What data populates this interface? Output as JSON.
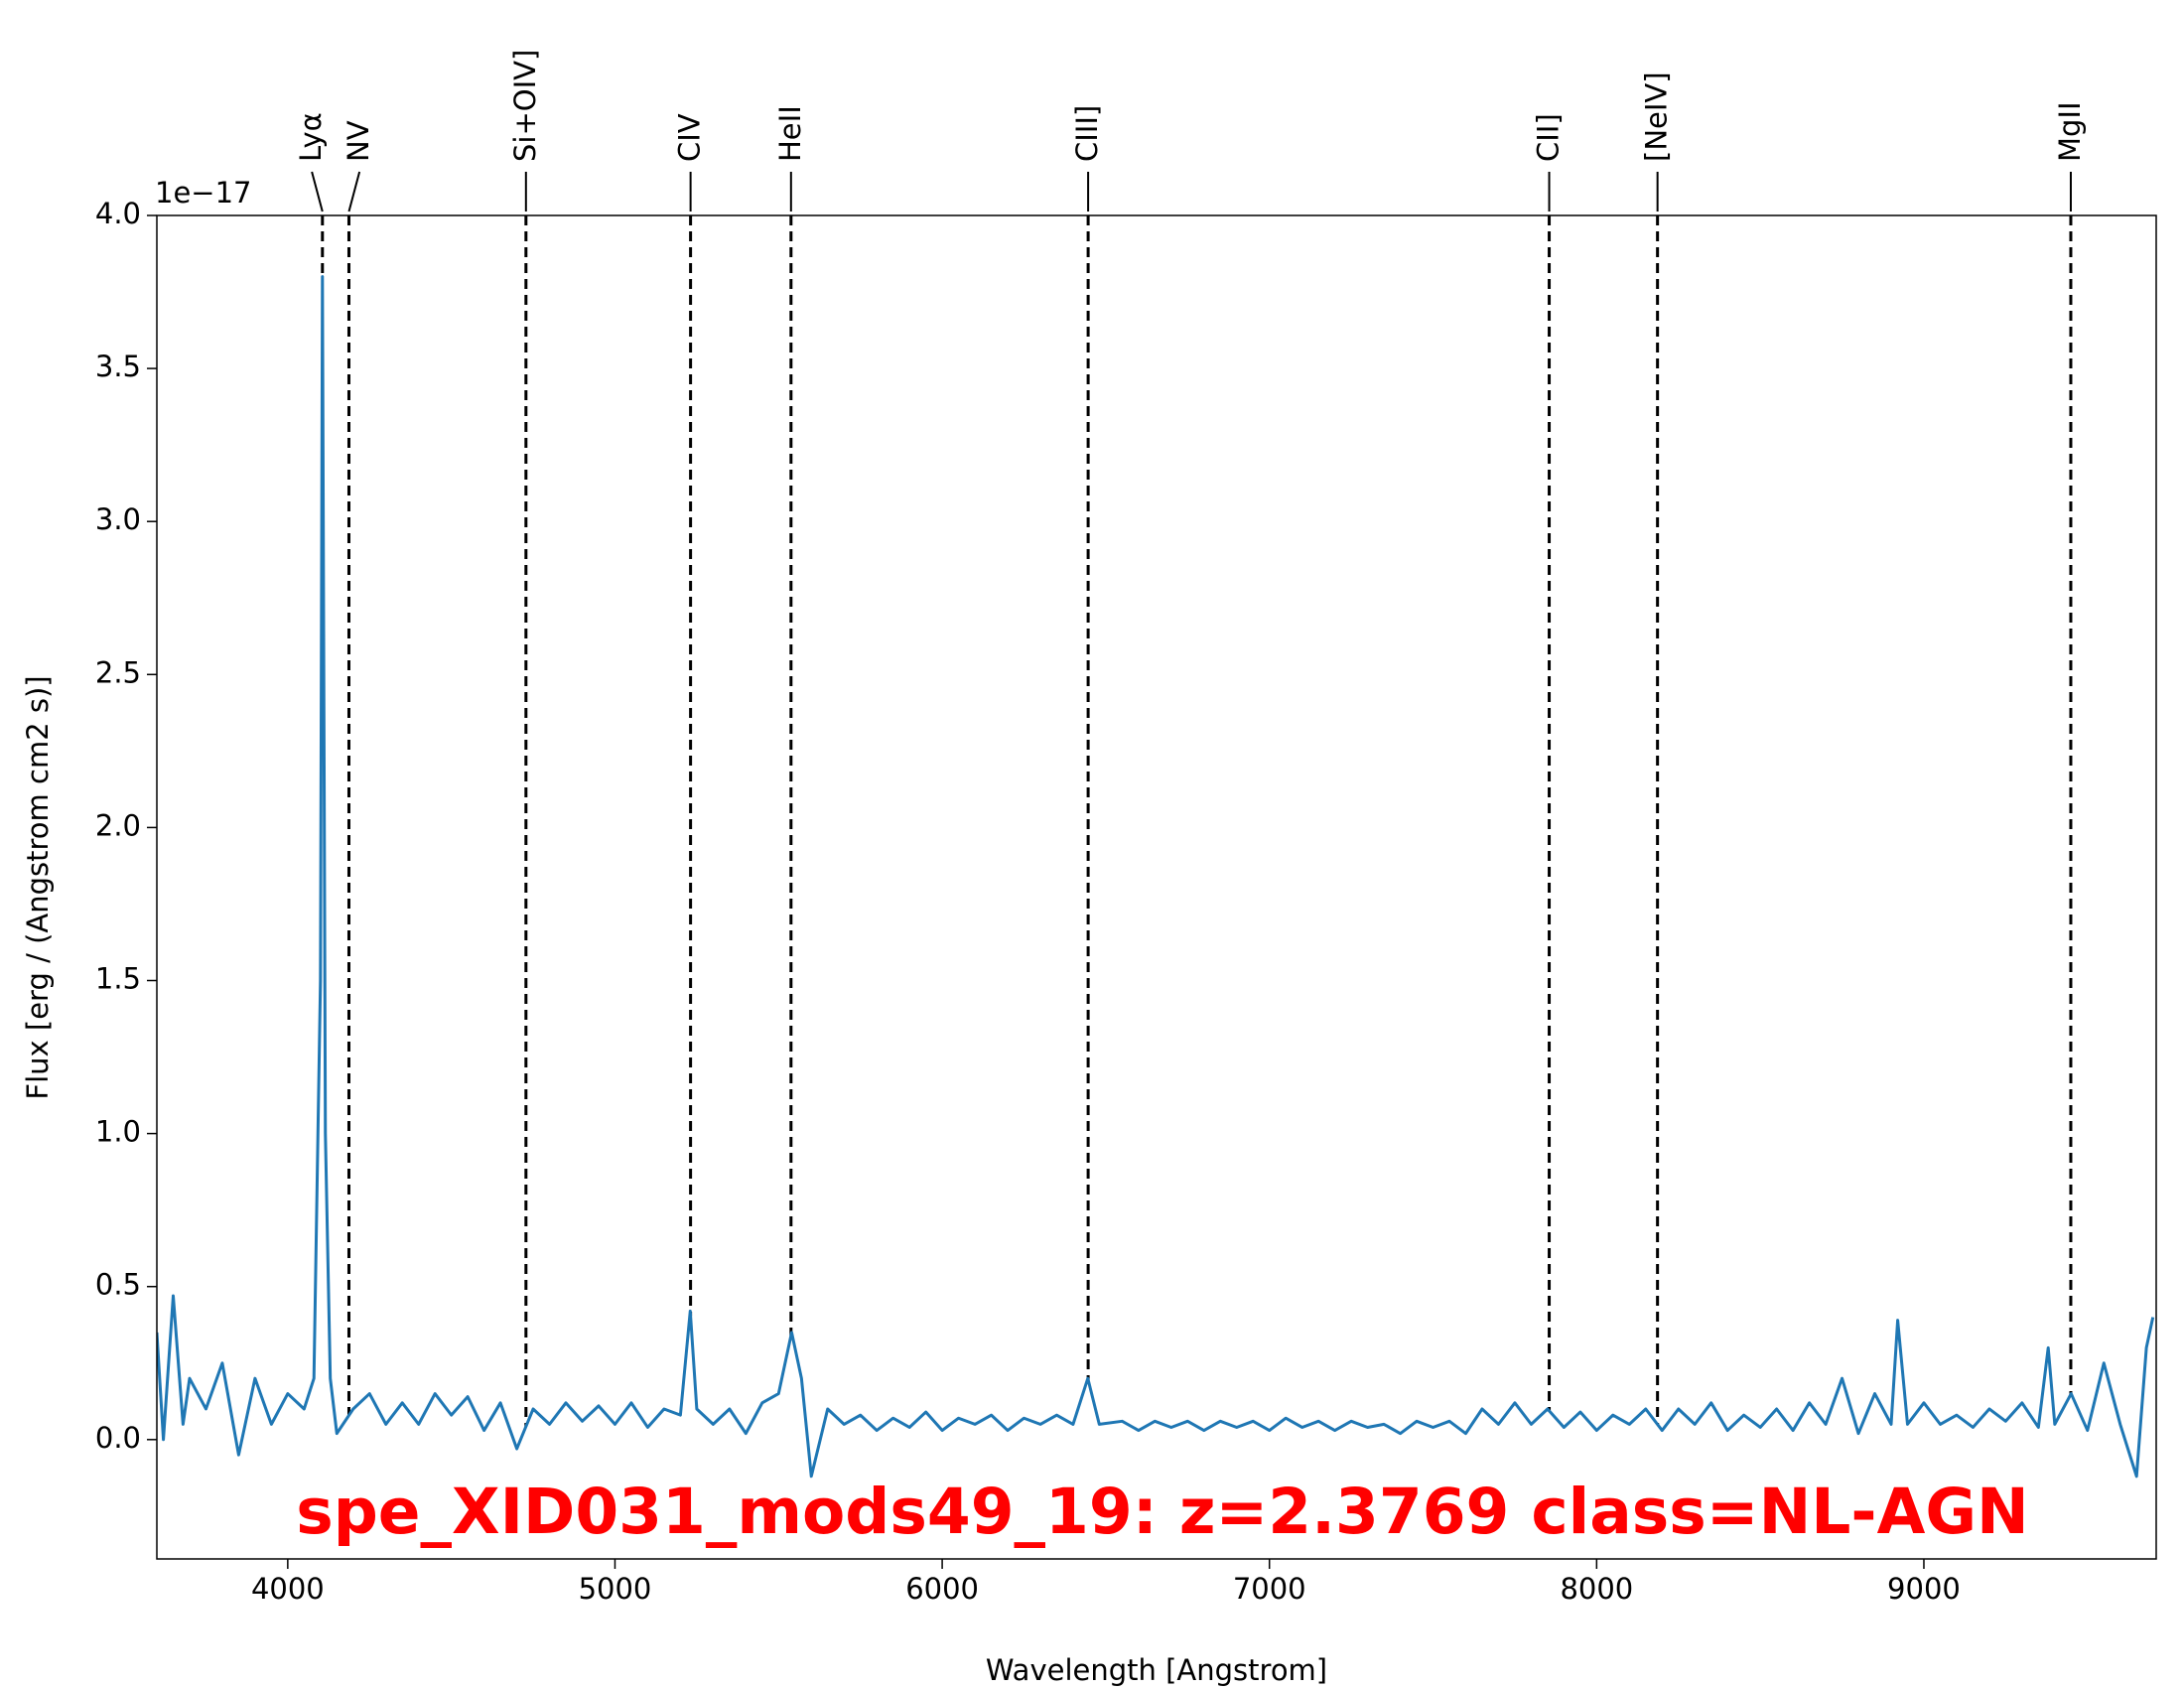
{
  "chart_data": {
    "type": "line",
    "title": "spe_XID031_mods49_19: z=2.3769 class=NL-AGN",
    "x_label": "Wavelength [Angstrom]",
    "y_label": "Flux [erg / (Angstrom cm2 s)]",
    "y_offset_label": "1e−17",
    "xlim": [
      3600,
      9710
    ],
    "ylim": [
      -0.39,
      4.0
    ],
    "xticks": [
      4000,
      5000,
      6000,
      7000,
      8000,
      9000
    ],
    "yticks": [
      {
        "value": 0,
        "label": "0.0"
      },
      0.5,
      {
        "value": 1,
        "label": "1.0"
      },
      1.5,
      {
        "value": 2,
        "label": "2.0"
      },
      2.5,
      {
        "value": 3,
        "label": "3.0"
      },
      3.5,
      {
        "value": 4,
        "label": "4.0"
      }
    ],
    "emission_lines": [
      {
        "label": "Lyα",
        "x": 4106
      },
      {
        "label": "NV",
        "x": 4187
      },
      {
        "label": "Si+OIV]",
        "x": 4728
      },
      {
        "label": "CIV",
        "x": 5231
      },
      {
        "label": "HeII",
        "x": 5538
      },
      {
        "label": "CIII]",
        "x": 6446
      },
      {
        "label": "CII]",
        "x": 7855
      },
      {
        "label": "[NeIV]",
        "x": 8186
      },
      {
        "label": "MgII",
        "x": 9449
      }
    ],
    "series": [
      {
        "color": "#1f77b4",
        "x": [
          3600,
          3620,
          3650,
          3680,
          3700,
          3750,
          3800,
          3850,
          3900,
          3950,
          4000,
          4050,
          4080,
          4100,
          4106,
          4115,
          4130,
          4150,
          4200,
          4250,
          4300,
          4350,
          4400,
          4450,
          4500,
          4550,
          4600,
          4650,
          4700,
          4750,
          4800,
          4850,
          4900,
          4950,
          5000,
          5050,
          5100,
          5150,
          5200,
          5230,
          5250,
          5300,
          5350,
          5400,
          5450,
          5500,
          5540,
          5570,
          5600,
          5650,
          5700,
          5750,
          5800,
          5850,
          5900,
          5950,
          6000,
          6050,
          6100,
          6150,
          6200,
          6250,
          6300,
          6350,
          6400,
          6445,
          6480,
          6550,
          6600,
          6650,
          6700,
          6750,
          6800,
          6850,
          6900,
          6950,
          7000,
          7050,
          7100,
          7150,
          7200,
          7250,
          7300,
          7350,
          7400,
          7450,
          7500,
          7550,
          7600,
          7650,
          7700,
          7750,
          7800,
          7850,
          7900,
          7950,
          8000,
          8050,
          8100,
          8150,
          8200,
          8250,
          8300,
          8350,
          8400,
          8450,
          8500,
          8550,
          8600,
          8650,
          8700,
          8750,
          8800,
          8850,
          8900,
          8920,
          8950,
          9000,
          9050,
          9100,
          9150,
          9200,
          9250,
          9300,
          9350,
          9380,
          9400,
          9450,
          9500,
          9550,
          9600,
          9650,
          9680,
          9700
        ],
        "values": [
          0.35,
          0.0,
          0.47,
          0.05,
          0.2,
          0.1,
          0.25,
          -0.05,
          0.2,
          0.05,
          0.15,
          0.1,
          0.2,
          1.5,
          3.8,
          1.0,
          0.2,
          0.02,
          0.1,
          0.15,
          0.05,
          0.12,
          0.05,
          0.15,
          0.08,
          0.14,
          0.03,
          0.12,
          -0.03,
          0.1,
          0.05,
          0.12,
          0.06,
          0.11,
          0.05,
          0.12,
          0.04,
          0.1,
          0.08,
          0.42,
          0.1,
          0.05,
          0.1,
          0.02,
          0.12,
          0.15,
          0.35,
          0.2,
          -0.12,
          0.1,
          0.05,
          0.08,
          0.03,
          0.07,
          0.04,
          0.09,
          0.03,
          0.07,
          0.05,
          0.08,
          0.03,
          0.07,
          0.05,
          0.08,
          0.05,
          0.2,
          0.05,
          0.06,
          0.03,
          0.06,
          0.04,
          0.06,
          0.03,
          0.06,
          0.04,
          0.06,
          0.03,
          0.07,
          0.04,
          0.06,
          0.03,
          0.06,
          0.04,
          0.05,
          0.02,
          0.06,
          0.04,
          0.06,
          0.02,
          0.1,
          0.05,
          0.12,
          0.05,
          0.1,
          0.04,
          0.09,
          0.03,
          0.08,
          0.05,
          0.1,
          0.03,
          0.1,
          0.05,
          0.12,
          0.03,
          0.08,
          0.04,
          0.1,
          0.03,
          0.12,
          0.05,
          0.2,
          0.02,
          0.15,
          0.05,
          0.39,
          0.05,
          0.12,
          0.05,
          0.08,
          0.04,
          0.1,
          0.06,
          0.12,
          0.04,
          0.3,
          0.05,
          0.15,
          0.03,
          0.25,
          0.05,
          -0.12,
          0.3,
          0.4
        ]
      }
    ]
  }
}
